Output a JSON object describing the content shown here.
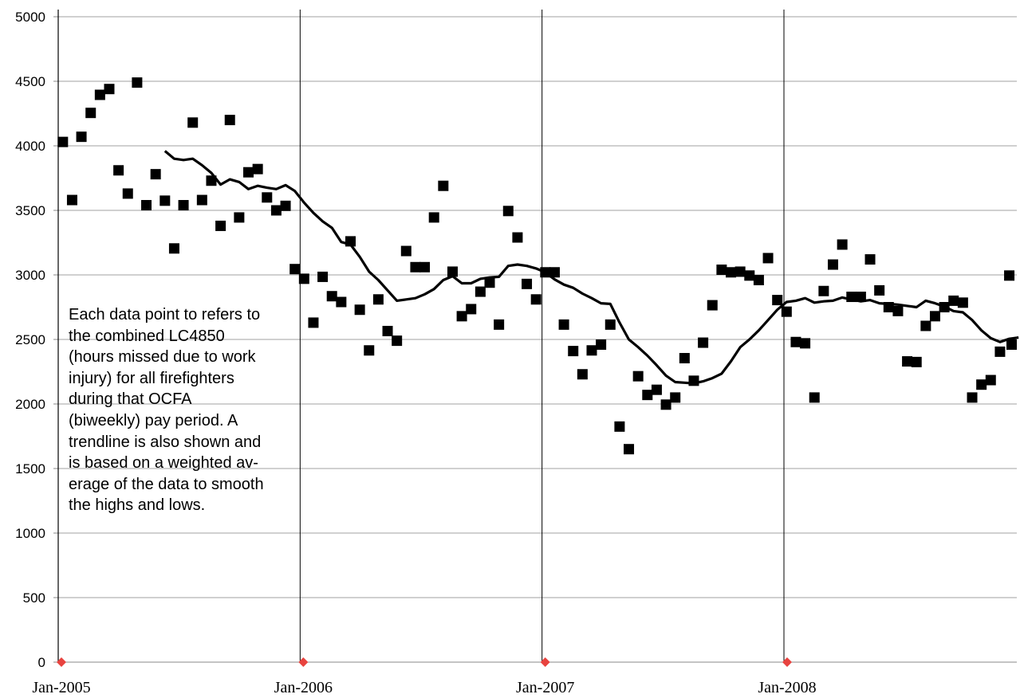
{
  "chart_data": {
    "type": "scatter",
    "y_ticks": [
      "0",
      "500",
      "1000",
      "1500",
      "2000",
      "2500",
      "3000",
      "3500",
      "4000",
      "4500",
      "5000"
    ],
    "x_tick_labels": [
      "Jan-2005",
      "Jan-2006",
      "Jan-2007",
      "Jan-2008"
    ],
    "ylim": [
      0,
      5000
    ],
    "grid": "horizontal gridlines every 500; vertical lines at each year",
    "annotation_lines": [
      "Each data point to refers to",
      "the combined LC4850",
      "(hours missed due to work",
      "injury) for all firefighters",
      "during that OCFA",
      "(biweekly) pay period. A",
      "trendline is also shown and",
      "is based on a weighted av-",
      "erage of the data to smooth",
      "the highs and lows."
    ],
    "colors": {
      "points": "#000000",
      "trendline": "#000000",
      "year_markers": "#e8433f",
      "grid": "#a0a0a0"
    },
    "points": [
      {
        "x": "2005-01-08",
        "y": 4030
      },
      {
        "x": "2005-01-22",
        "y": 3580
      },
      {
        "x": "2005-02-05",
        "y": 4070
      },
      {
        "x": "2005-02-19",
        "y": 4255
      },
      {
        "x": "2005-03-05",
        "y": 4395
      },
      {
        "x": "2005-03-19",
        "y": 4440
      },
      {
        "x": "2005-04-02",
        "y": 3810
      },
      {
        "x": "2005-04-16",
        "y": 3630
      },
      {
        "x": "2005-04-30",
        "y": 4490
      },
      {
        "x": "2005-05-14",
        "y": 3540
      },
      {
        "x": "2005-05-28",
        "y": 3780
      },
      {
        "x": "2005-06-11",
        "y": 3575
      },
      {
        "x": "2005-06-25",
        "y": 3205
      },
      {
        "x": "2005-07-09",
        "y": 3540
      },
      {
        "x": "2005-07-23",
        "y": 4180
      },
      {
        "x": "2005-08-06",
        "y": 3580
      },
      {
        "x": "2005-08-20",
        "y": 3730
      },
      {
        "x": "2005-09-03",
        "y": 3380
      },
      {
        "x": "2005-09-17",
        "y": 4200
      },
      {
        "x": "2005-10-01",
        "y": 3445
      },
      {
        "x": "2005-10-15",
        "y": 3795
      },
      {
        "x": "2005-10-29",
        "y": 3820
      },
      {
        "x": "2005-11-12",
        "y": 3600
      },
      {
        "x": "2005-11-26",
        "y": 3500
      },
      {
        "x": "2005-12-10",
        "y": 3535
      },
      {
        "x": "2005-12-24",
        "y": 3045
      },
      {
        "x": "2006-01-07",
        "y": 2970
      },
      {
        "x": "2006-01-21",
        "y": 2630
      },
      {
        "x": "2006-02-04",
        "y": 2985
      },
      {
        "x": "2006-02-18",
        "y": 2835
      },
      {
        "x": "2006-03-04",
        "y": 2790
      },
      {
        "x": "2006-03-18",
        "y": 3260
      },
      {
        "x": "2006-04-01",
        "y": 2730
      },
      {
        "x": "2006-04-15",
        "y": 2415
      },
      {
        "x": "2006-04-29",
        "y": 2810
      },
      {
        "x": "2006-05-13",
        "y": 2565
      },
      {
        "x": "2006-05-27",
        "y": 2490
      },
      {
        "x": "2006-06-10",
        "y": 3185
      },
      {
        "x": "2006-06-24",
        "y": 3060
      },
      {
        "x": "2006-07-08",
        "y": 3060
      },
      {
        "x": "2006-07-22",
        "y": 3445
      },
      {
        "x": "2006-08-05",
        "y": 3690
      },
      {
        "x": "2006-08-19",
        "y": 3025
      },
      {
        "x": "2006-09-02",
        "y": 2680
      },
      {
        "x": "2006-09-16",
        "y": 2735
      },
      {
        "x": "2006-09-30",
        "y": 2870
      },
      {
        "x": "2006-10-14",
        "y": 2940
      },
      {
        "x": "2006-10-28",
        "y": 2615
      },
      {
        "x": "2006-11-11",
        "y": 3495
      },
      {
        "x": "2006-11-25",
        "y": 3290
      },
      {
        "x": "2006-12-09",
        "y": 2930
      },
      {
        "x": "2006-12-23",
        "y": 2810
      },
      {
        "x": "2007-01-06",
        "y": 3020
      },
      {
        "x": "2007-01-20",
        "y": 3020
      },
      {
        "x": "2007-02-03",
        "y": 2615
      },
      {
        "x": "2007-02-17",
        "y": 2410
      },
      {
        "x": "2007-03-03",
        "y": 2230
      },
      {
        "x": "2007-03-17",
        "y": 2415
      },
      {
        "x": "2007-03-31",
        "y": 2460
      },
      {
        "x": "2007-04-14",
        "y": 2615
      },
      {
        "x": "2007-04-28",
        "y": 1825
      },
      {
        "x": "2007-05-12",
        "y": 1650
      },
      {
        "x": "2007-05-26",
        "y": 2215
      },
      {
        "x": "2007-06-09",
        "y": 2070
      },
      {
        "x": "2007-06-23",
        "y": 2110
      },
      {
        "x": "2007-07-07",
        "y": 1995
      },
      {
        "x": "2007-07-21",
        "y": 2050
      },
      {
        "x": "2007-08-04",
        "y": 2355
      },
      {
        "x": "2007-08-18",
        "y": 2180
      },
      {
        "x": "2007-09-01",
        "y": 2475
      },
      {
        "x": "2007-09-15",
        "y": 2765
      },
      {
        "x": "2007-09-29",
        "y": 3040
      },
      {
        "x": "2007-10-13",
        "y": 3020
      },
      {
        "x": "2007-10-27",
        "y": 3025
      },
      {
        "x": "2007-11-10",
        "y": 2995
      },
      {
        "x": "2007-11-24",
        "y": 2960
      },
      {
        "x": "2007-12-08",
        "y": 3130
      },
      {
        "x": "2007-12-22",
        "y": 2805
      },
      {
        "x": "2008-01-05",
        "y": 2715
      },
      {
        "x": "2008-01-19",
        "y": 2480
      },
      {
        "x": "2008-02-02",
        "y": 2470
      },
      {
        "x": "2008-02-16",
        "y": 2050
      },
      {
        "x": "2008-03-01",
        "y": 2875
      },
      {
        "x": "2008-03-15",
        "y": 3080
      },
      {
        "x": "2008-03-29",
        "y": 3235
      },
      {
        "x": "2008-04-12",
        "y": 2830
      },
      {
        "x": "2008-04-26",
        "y": 2830
      },
      {
        "x": "2008-05-10",
        "y": 3120
      },
      {
        "x": "2008-05-24",
        "y": 2880
      },
      {
        "x": "2008-06-07",
        "y": 2750
      },
      {
        "x": "2008-06-21",
        "y": 2720
      },
      {
        "x": "2008-07-05",
        "y": 2330
      },
      {
        "x": "2008-07-19",
        "y": 2325
      },
      {
        "x": "2008-08-02",
        "y": 2605
      },
      {
        "x": "2008-08-16",
        "y": 2680
      },
      {
        "x": "2008-08-30",
        "y": 2750
      },
      {
        "x": "2008-09-13",
        "y": 2800
      },
      {
        "x": "2008-09-27",
        "y": 2785
      },
      {
        "x": "2008-10-11",
        "y": 2050
      },
      {
        "x": "2008-10-25",
        "y": 2150
      },
      {
        "x": "2008-11-08",
        "y": 2185
      },
      {
        "x": "2008-11-22",
        "y": 2405
      },
      {
        "x": "2008-12-06",
        "y": 2995
      },
      {
        "x": "2008-12-20",
        "y": 2460
      }
    ],
    "trendline": [
      {
        "x": "2005-06-11",
        "y": 3960
      },
      {
        "x": "2005-06-25",
        "y": 3900
      },
      {
        "x": "2005-07-09",
        "y": 3890
      },
      {
        "x": "2005-07-23",
        "y": 3900
      },
      {
        "x": "2005-08-06",
        "y": 3850
      },
      {
        "x": "2005-08-20",
        "y": 3790
      },
      {
        "x": "2005-09-03",
        "y": 3700
      },
      {
        "x": "2005-09-17",
        "y": 3740
      },
      {
        "x": "2005-10-01",
        "y": 3720
      },
      {
        "x": "2005-10-15",
        "y": 3665
      },
      {
        "x": "2005-10-29",
        "y": 3690
      },
      {
        "x": "2005-11-12",
        "y": 3675
      },
      {
        "x": "2005-11-26",
        "y": 3665
      },
      {
        "x": "2005-12-10",
        "y": 3695
      },
      {
        "x": "2005-12-24",
        "y": 3650
      },
      {
        "x": "2006-01-07",
        "y": 3560
      },
      {
        "x": "2006-01-21",
        "y": 3480
      },
      {
        "x": "2006-02-04",
        "y": 3415
      },
      {
        "x": "2006-02-18",
        "y": 3365
      },
      {
        "x": "2006-03-04",
        "y": 3255
      },
      {
        "x": "2006-03-18",
        "y": 3235
      },
      {
        "x": "2006-04-01",
        "y": 3140
      },
      {
        "x": "2006-04-15",
        "y": 3025
      },
      {
        "x": "2006-04-29",
        "y": 2960
      },
      {
        "x": "2006-05-13",
        "y": 2880
      },
      {
        "x": "2006-05-27",
        "y": 2800
      },
      {
        "x": "2006-06-10",
        "y": 2810
      },
      {
        "x": "2006-06-24",
        "y": 2820
      },
      {
        "x": "2006-07-08",
        "y": 2850
      },
      {
        "x": "2006-07-22",
        "y": 2890
      },
      {
        "x": "2006-08-05",
        "y": 2960
      },
      {
        "x": "2006-08-19",
        "y": 2990
      },
      {
        "x": "2006-09-02",
        "y": 2935
      },
      {
        "x": "2006-09-16",
        "y": 2935
      },
      {
        "x": "2006-09-30",
        "y": 2970
      },
      {
        "x": "2006-10-14",
        "y": 2980
      },
      {
        "x": "2006-10-28",
        "y": 2985
      },
      {
        "x": "2006-11-11",
        "y": 3070
      },
      {
        "x": "2006-11-25",
        "y": 3080
      },
      {
        "x": "2006-12-09",
        "y": 3070
      },
      {
        "x": "2006-12-23",
        "y": 3050
      },
      {
        "x": "2007-01-06",
        "y": 3020
      },
      {
        "x": "2007-01-20",
        "y": 2965
      },
      {
        "x": "2007-02-03",
        "y": 2925
      },
      {
        "x": "2007-02-17",
        "y": 2900
      },
      {
        "x": "2007-03-03",
        "y": 2855
      },
      {
        "x": "2007-03-17",
        "y": 2820
      },
      {
        "x": "2007-03-31",
        "y": 2780
      },
      {
        "x": "2007-04-14",
        "y": 2775
      },
      {
        "x": "2007-04-28",
        "y": 2630
      },
      {
        "x": "2007-05-12",
        "y": 2500
      },
      {
        "x": "2007-05-26",
        "y": 2440
      },
      {
        "x": "2007-06-09",
        "y": 2375
      },
      {
        "x": "2007-06-23",
        "y": 2300
      },
      {
        "x": "2007-07-07",
        "y": 2220
      },
      {
        "x": "2007-07-21",
        "y": 2170
      },
      {
        "x": "2007-08-04",
        "y": 2165
      },
      {
        "x": "2007-08-18",
        "y": 2160
      },
      {
        "x": "2007-09-01",
        "y": 2175
      },
      {
        "x": "2007-09-15",
        "y": 2200
      },
      {
        "x": "2007-09-29",
        "y": 2235
      },
      {
        "x": "2007-10-13",
        "y": 2330
      },
      {
        "x": "2007-10-27",
        "y": 2440
      },
      {
        "x": "2007-11-10",
        "y": 2500
      },
      {
        "x": "2007-11-24",
        "y": 2570
      },
      {
        "x": "2007-12-08",
        "y": 2650
      },
      {
        "x": "2007-12-22",
        "y": 2730
      },
      {
        "x": "2008-01-05",
        "y": 2790
      },
      {
        "x": "2008-01-19",
        "y": 2800
      },
      {
        "x": "2008-02-02",
        "y": 2820
      },
      {
        "x": "2008-02-16",
        "y": 2785
      },
      {
        "x": "2008-03-01",
        "y": 2795
      },
      {
        "x": "2008-03-15",
        "y": 2800
      },
      {
        "x": "2008-03-29",
        "y": 2825
      },
      {
        "x": "2008-04-12",
        "y": 2810
      },
      {
        "x": "2008-04-26",
        "y": 2795
      },
      {
        "x": "2008-05-10",
        "y": 2805
      },
      {
        "x": "2008-05-24",
        "y": 2780
      },
      {
        "x": "2008-06-07",
        "y": 2775
      },
      {
        "x": "2008-06-21",
        "y": 2770
      },
      {
        "x": "2008-07-05",
        "y": 2760
      },
      {
        "x": "2008-07-19",
        "y": 2750
      },
      {
        "x": "2008-08-02",
        "y": 2800
      },
      {
        "x": "2008-08-16",
        "y": 2780
      },
      {
        "x": "2008-08-30",
        "y": 2755
      },
      {
        "x": "2008-09-13",
        "y": 2720
      },
      {
        "x": "2008-09-27",
        "y": 2710
      },
      {
        "x": "2008-10-11",
        "y": 2650
      },
      {
        "x": "2008-10-25",
        "y": 2570
      },
      {
        "x": "2008-11-08",
        "y": 2510
      },
      {
        "x": "2008-11-22",
        "y": 2480
      },
      {
        "x": "2008-12-06",
        "y": 2505
      },
      {
        "x": "2008-12-20",
        "y": 2515
      }
    ]
  }
}
